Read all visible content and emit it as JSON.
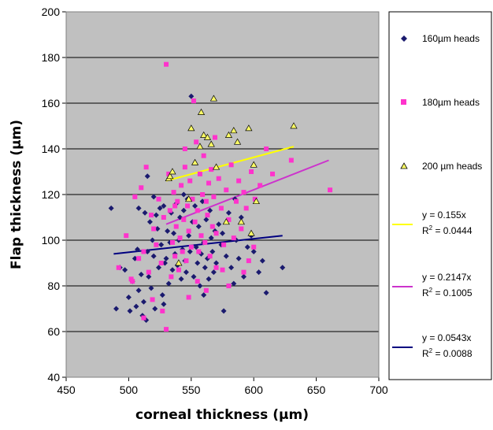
{
  "chart_data": {
    "type": "scatter",
    "xlabel": "corneal thickness (µm)",
    "ylabel": "Flap thickness (µm)",
    "xlim": [
      450,
      700
    ],
    "ylim": [
      40,
      200
    ],
    "x_ticks": [
      450,
      500,
      550,
      600,
      650,
      700
    ],
    "y_ticks": [
      40,
      60,
      80,
      100,
      120,
      140,
      160,
      180,
      200
    ],
    "grid": "horizontal",
    "legend_position": "right",
    "colors": {
      "plot_bg": "#c0c0c0",
      "s160": "#1a1a6e",
      "s180": "#ff33cc",
      "s200": "#ffff66",
      "line200": "#ffff00",
      "line180": "#cc33cc",
      "line160": "#000080"
    },
    "series": [
      {
        "name": "160µm heads",
        "marker": "diamond",
        "points": [
          [
            486,
            114
          ],
          [
            490,
            70
          ],
          [
            493,
            88
          ],
          [
            497,
            87
          ],
          [
            500,
            75
          ],
          [
            501,
            69
          ],
          [
            503,
            82
          ],
          [
            505,
            92
          ],
          [
            506,
            71
          ],
          [
            507,
            96
          ],
          [
            508,
            78
          ],
          [
            510,
            85
          ],
          [
            511,
            67
          ],
          [
            512,
            73
          ],
          [
            513,
            112
          ],
          [
            514,
            65
          ],
          [
            515,
            95
          ],
          [
            516,
            84
          ],
          [
            517,
            108
          ],
          [
            518,
            79
          ],
          [
            519,
            100
          ],
          [
            520,
            93
          ],
          [
            521,
            70
          ],
          [
            522,
            111
          ],
          [
            523,
            105
          ],
          [
            524,
            88
          ],
          [
            525,
            114
          ],
          [
            526,
            98
          ],
          [
            527,
            76
          ],
          [
            528,
            115
          ],
          [
            529,
            90
          ],
          [
            530,
            92
          ],
          [
            531,
            104
          ],
          [
            532,
            81
          ],
          [
            533,
            99
          ],
          [
            534,
            112
          ],
          [
            535,
            87
          ],
          [
            536,
            103
          ],
          [
            537,
            94
          ],
          [
            538,
            116
          ],
          [
            539,
            89
          ],
          [
            540,
            100
          ],
          [
            541,
            110
          ],
          [
            542,
            83
          ],
          [
            543,
            96
          ],
          [
            544,
            113
          ],
          [
            545,
            91
          ],
          [
            546,
            86
          ],
          [
            547,
            118
          ],
          [
            548,
            102
          ],
          [
            549,
            95
          ],
          [
            550,
            163
          ],
          [
            551,
            108
          ],
          [
            552,
            84
          ],
          [
            553,
            115
          ],
          [
            554,
            97
          ],
          [
            555,
            90
          ],
          [
            556,
            106
          ],
          [
            557,
            80
          ],
          [
            558,
            94
          ],
          [
            559,
            117
          ],
          [
            560,
            99
          ],
          [
            561,
            88
          ],
          [
            562,
            109
          ],
          [
            563,
            92
          ],
          [
            564,
            83
          ],
          [
            565,
            113
          ],
          [
            566,
            101
          ],
          [
            567,
            95
          ],
          [
            568,
            86
          ],
          [
            569,
            104
          ],
          [
            570,
            90
          ],
          [
            572,
            107
          ],
          [
            574,
            98
          ],
          [
            576,
            69
          ],
          [
            578,
            93
          ],
          [
            580,
            112
          ],
          [
            582,
            88
          ],
          [
            584,
            81
          ],
          [
            586,
            100
          ],
          [
            588,
            92
          ],
          [
            590,
            110
          ],
          [
            592,
            84
          ],
          [
            595,
            97
          ],
          [
            598,
            102
          ],
          [
            600,
            95
          ],
          [
            604,
            86
          ],
          [
            607,
            91
          ],
          [
            610,
            77
          ],
          [
            623,
            88
          ],
          [
            515,
            128
          ],
          [
            520,
            119
          ],
          [
            528,
            72
          ],
          [
            508,
            114
          ],
          [
            544,
            120
          ],
          [
            560,
            76
          ],
          [
            575,
            103
          ],
          [
            585,
            118
          ]
        ]
      },
      {
        "name": "180µm heads",
        "marker": "square",
        "points": [
          [
            492,
            88
          ],
          [
            498,
            102
          ],
          [
            502,
            83
          ],
          [
            505,
            119
          ],
          [
            508,
            92
          ],
          [
            510,
            123
          ],
          [
            512,
            95
          ],
          [
            514,
            132
          ],
          [
            516,
            86
          ],
          [
            518,
            111
          ],
          [
            520,
            105
          ],
          [
            522,
            98
          ],
          [
            524,
            118
          ],
          [
            526,
            90
          ],
          [
            528,
            110
          ],
          [
            530,
            177
          ],
          [
            530,
            61
          ],
          [
            532,
            129
          ],
          [
            533,
            113
          ],
          [
            534,
            84
          ],
          [
            535,
            99
          ],
          [
            536,
            121
          ],
          [
            537,
            93
          ],
          [
            538,
            106
          ],
          [
            539,
            117
          ],
          [
            540,
            87
          ],
          [
            541,
            101
          ],
          [
            542,
            124
          ],
          [
            543,
            95
          ],
          [
            544,
            109
          ],
          [
            545,
            132
          ],
          [
            546,
            91
          ],
          [
            547,
            115
          ],
          [
            548,
            104
          ],
          [
            549,
            126
          ],
          [
            550,
            97
          ],
          [
            551,
            118
          ],
          [
            552,
            161
          ],
          [
            553,
            108
          ],
          [
            554,
            143
          ],
          [
            555,
            113
          ],
          [
            556,
            95
          ],
          [
            557,
            129
          ],
          [
            558,
            102
          ],
          [
            559,
            120
          ],
          [
            560,
            137
          ],
          [
            561,
            99
          ],
          [
            562,
            117
          ],
          [
            563,
            111
          ],
          [
            564,
            125
          ],
          [
            565,
            93
          ],
          [
            566,
            131
          ],
          [
            567,
            106
          ],
          [
            568,
            119
          ],
          [
            569,
            145
          ],
          [
            570,
            103
          ],
          [
            572,
            127
          ],
          [
            574,
            114
          ],
          [
            576,
            98
          ],
          [
            578,
            122
          ],
          [
            580,
            109
          ],
          [
            582,
            133
          ],
          [
            584,
            101
          ],
          [
            586,
            117
          ],
          [
            588,
            126
          ],
          [
            590,
            105
          ],
          [
            592,
            121
          ],
          [
            594,
            114
          ],
          [
            596,
            91
          ],
          [
            598,
            130
          ],
          [
            601,
            118
          ],
          [
            605,
            124
          ],
          [
            610,
            140
          ],
          [
            615,
            129
          ],
          [
            630,
            135
          ],
          [
            661,
            122
          ],
          [
            503,
            82
          ],
          [
            512,
            66
          ],
          [
            548,
            75
          ],
          [
            555,
            82
          ],
          [
            562,
            78
          ],
          [
            570,
            88
          ],
          [
            580,
            80
          ],
          [
            592,
            86
          ],
          [
            600,
            97
          ],
          [
            519,
            74
          ],
          [
            527,
            69
          ],
          [
            537,
            115
          ],
          [
            545,
            140
          ],
          [
            575,
            87
          ]
        ]
      },
      {
        "name": "200 µm heads",
        "marker": "triangle",
        "points": [
          [
            532,
            127
          ],
          [
            533,
            128
          ],
          [
            535,
            130
          ],
          [
            540,
            90
          ],
          [
            548,
            118
          ],
          [
            550,
            149
          ],
          [
            553,
            134
          ],
          [
            557,
            141
          ],
          [
            558,
            156
          ],
          [
            560,
            146
          ],
          [
            563,
            145
          ],
          [
            566,
            142
          ],
          [
            568,
            162
          ],
          [
            570,
            132
          ],
          [
            578,
            108
          ],
          [
            580,
            146
          ],
          [
            584,
            148
          ],
          [
            590,
            108
          ],
          [
            596,
            149
          ],
          [
            598,
            103
          ],
          [
            600,
            133
          ],
          [
            602,
            117
          ],
          [
            632,
            150
          ],
          [
            587,
            143
          ]
        ]
      }
    ],
    "trendlines": [
      {
        "equation": "y = 0.155x",
        "r2_prefix": "R",
        "r2_sup": "2",
        "r2_suffix": " = 0.0444",
        "color": "#ffff00",
        "from": [
          530,
          126
        ],
        "to": [
          632,
          141
        ]
      },
      {
        "equation": "y = 0.2147x",
        "r2_prefix": "R",
        "r2_sup": "2",
        "r2_suffix": " = 0.1005",
        "color": "#cc33cc",
        "from": [
          530,
          107
        ],
        "to": [
          660,
          135
        ]
      },
      {
        "equation": "y = 0.0543x",
        "r2_prefix": "R",
        "r2_sup": "2",
        "r2_suffix": " = 0.0088",
        "color": "#000080",
        "from": [
          488,
          94
        ],
        "to": [
          623,
          102
        ]
      }
    ]
  }
}
